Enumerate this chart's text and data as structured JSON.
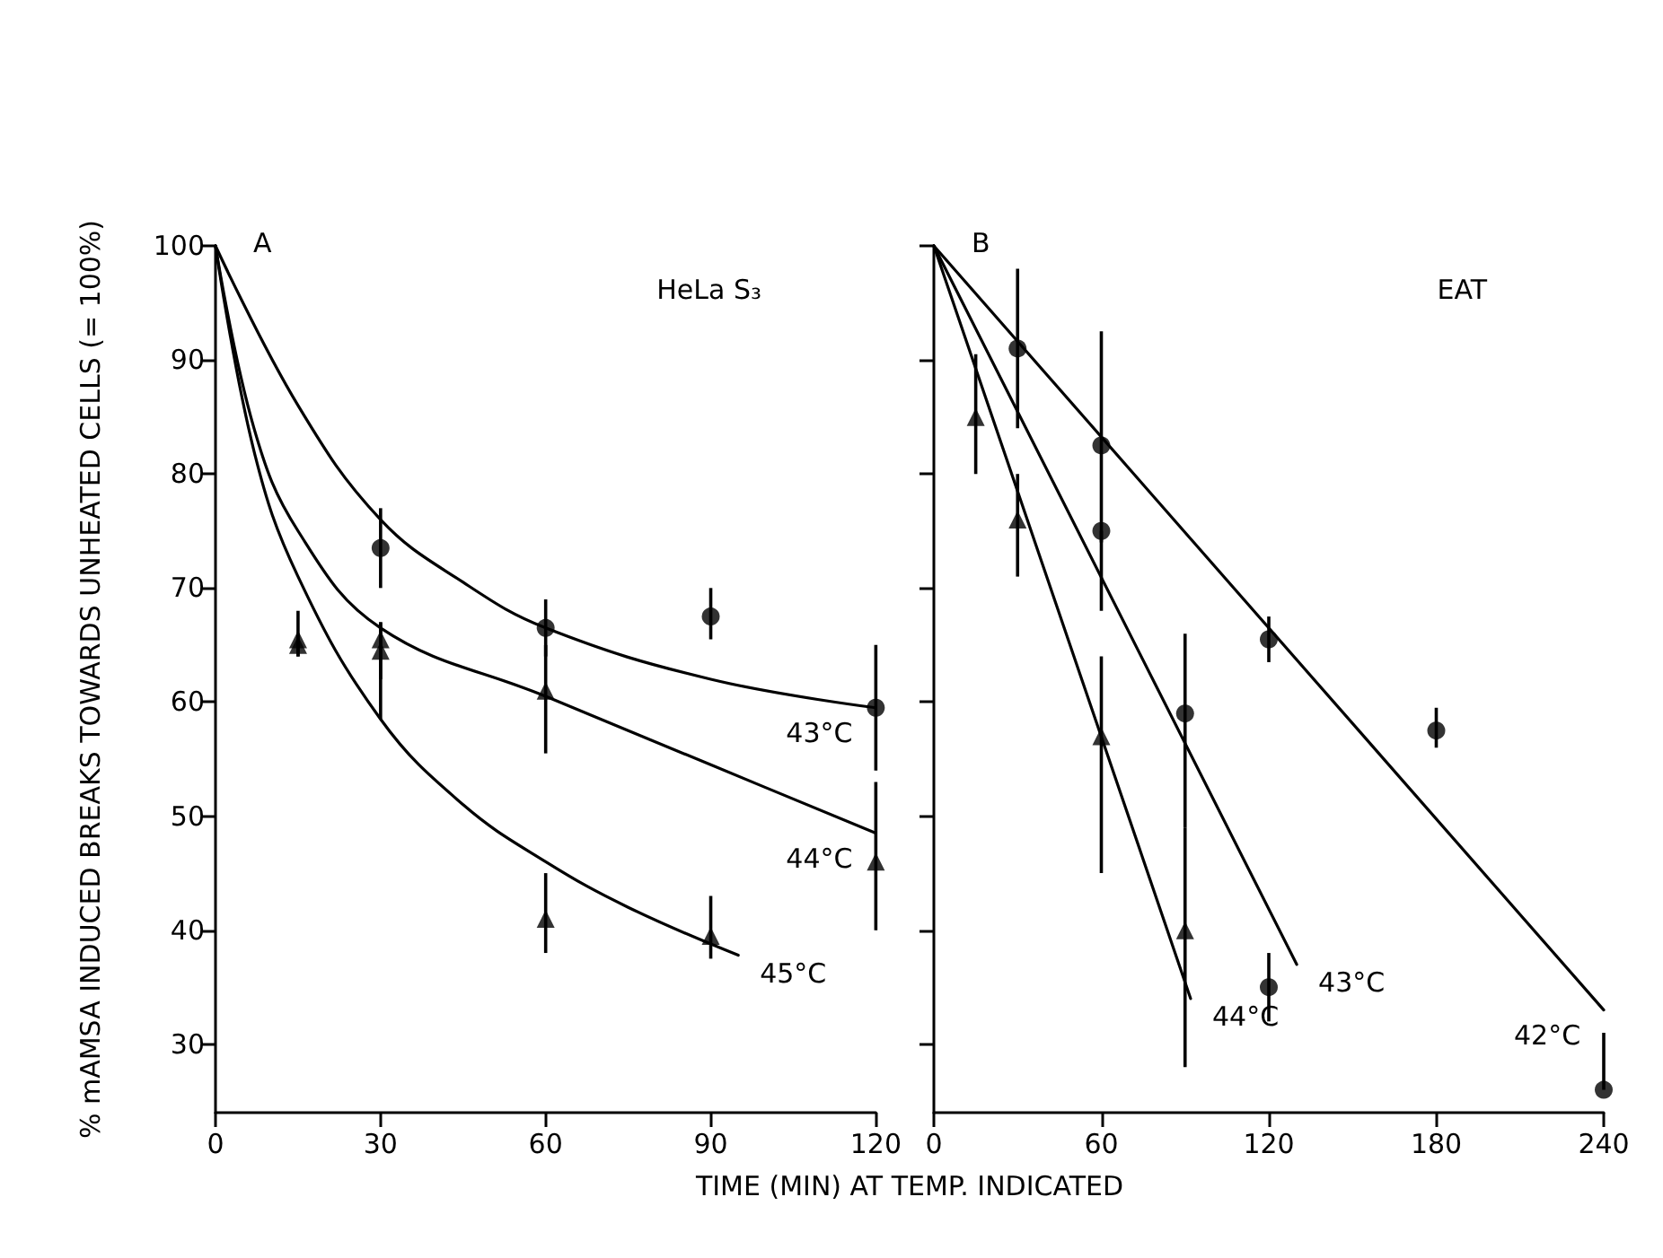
{
  "chart_data": [
    {
      "type": "scatter",
      "title": "A",
      "subtitle": "HeLa S₃",
      "xlabel": "TIME (MIN) AT TEMP. INDICATED",
      "ylabel": "% mAMSA INDUCED BREAKS TOWARDS UNHEATED CELLS (= 100%)",
      "xlim": [
        0,
        120
      ],
      "xticks": [
        0,
        30,
        60,
        90,
        120
      ],
      "ylim": [
        24,
        100
      ],
      "yticks": [
        30,
        40,
        50,
        60,
        70,
        80,
        90,
        100
      ],
      "grid": false,
      "legend": false,
      "series": [
        {
          "type": "line",
          "name": "43°C",
          "color": "#000000",
          "marker": "none",
          "x": [
            0,
            15,
            30,
            45,
            60,
            90,
            120
          ],
          "values": [
            100,
            86,
            76,
            70.5,
            66.5,
            62,
            59.5
          ]
        },
        {
          "type": "line",
          "name": "44°C",
          "color": "#000000",
          "marker": "none",
          "x": [
            0,
            7,
            15,
            30,
            60,
            90,
            120
          ],
          "values": [
            100,
            84,
            75,
            66.5,
            60.5,
            54.5,
            48.5
          ]
        },
        {
          "type": "line",
          "name": "45°C",
          "color": "#000000",
          "marker": "none",
          "x": [
            0,
            7,
            15,
            30,
            45,
            60,
            75,
            95
          ],
          "values": [
            100,
            82,
            71,
            58.5,
            51,
            46,
            42,
            37.8
          ]
        },
        {
          "color": "#000000",
          "marker": "circle",
          "x": [
            30,
            60,
            90,
            120
          ],
          "values": [
            73.5,
            66.5,
            67.5,
            59.5
          ],
          "errors": [
            [
              70,
              77
            ],
            [
              64,
              69
            ],
            [
              65.5,
              70
            ],
            [
              54,
              65
            ]
          ]
        },
        {
          "color": "#000000",
          "marker": "triangle",
          "x": [
            15,
            30,
            60,
            120
          ],
          "values": [
            65.5,
            64.5,
            61,
            46
          ],
          "errors": [
            [
              64,
              68
            ],
            [
              58.5,
              67
            ],
            [
              55.5,
              65
            ],
            [
              40,
              53
            ]
          ]
        },
        {
          "color": "#000000",
          "marker": "triangle",
          "x": [
            15,
            30,
            60,
            90
          ],
          "values": [
            65,
            65.5,
            41,
            39.5
          ],
          "errors": [
            [
              64,
              66
            ],
            [
              62,
              67
            ],
            [
              38,
              45
            ],
            [
              37.5,
              43
            ]
          ]
        }
      ]
    },
    {
      "type": "scatter",
      "title": "B",
      "subtitle": "EAT",
      "xlim": [
        0,
        240
      ],
      "xticks": [
        0,
        60,
        120,
        180,
        240
      ],
      "ylim": [
        24,
        100
      ],
      "yticks": [
        30,
        40,
        50,
        60,
        70,
        80,
        90,
        100
      ],
      "tick_labels": "x",
      "grid": false,
      "legend": false,
      "series": [
        {
          "type": "line",
          "name": "42°C",
          "color": "#000000",
          "marker": "none",
          "x": [
            0,
            240
          ],
          "values": [
            100,
            33
          ]
        },
        {
          "type": "line",
          "name": "43°C",
          "color": "#000000",
          "marker": "none",
          "x": [
            0,
            130
          ],
          "values": [
            100,
            37
          ]
        },
        {
          "type": "line",
          "name": "44°C",
          "color": "#000000",
          "marker": "none",
          "x": [
            0,
            92
          ],
          "values": [
            100,
            34
          ]
        },
        {
          "color": "#000000",
          "marker": "circle",
          "x": [
            30,
            60,
            120,
            180,
            240
          ],
          "values": [
            91,
            82.5,
            65.5,
            57.5,
            26
          ],
          "errors": [
            [
              84,
              98
            ],
            [
              74,
              92.5
            ],
            [
              63.5,
              67.5
            ],
            [
              56,
              59.5
            ],
            [
              26,
              31
            ]
          ]
        },
        {
          "color": "#000000",
          "marker": "circle",
          "x": [
            60,
            90,
            120
          ],
          "values": [
            75,
            59,
            35
          ],
          "errors": [
            [
              68,
              75
            ],
            [
              49,
              66
            ],
            [
              32,
              38
            ]
          ]
        },
        {
          "color": "#000000",
          "marker": "triangle",
          "x": [
            15,
            30,
            60,
            90
          ],
          "values": [
            85,
            76,
            57,
            40
          ],
          "errors": [
            [
              80,
              90.5
            ],
            [
              71,
              80
            ],
            [
              45,
              64
            ],
            [
              28,
              49
            ]
          ]
        }
      ]
    }
  ]
}
